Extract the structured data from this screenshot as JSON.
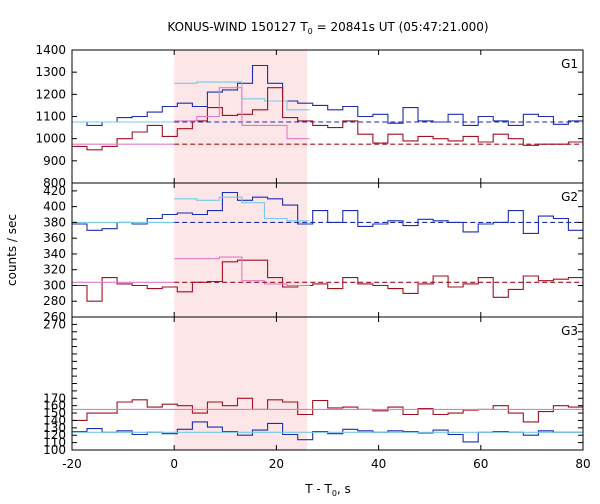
{
  "chart_data": {
    "type": "line",
    "title": "KONUS-WIND 150127 T",
    "title_sub": "0",
    "title_rest": " = 20841s UT (05:47:21.000)",
    "xlabel": "T - T",
    "xlabel_sub": "0",
    "xlabel_rest": ", s",
    "ylabel": "counts / sec",
    "xlim": [
      -20,
      80
    ],
    "xticks": [
      -20,
      0,
      20,
      40,
      60,
      80
    ],
    "shaded_interval": [
      0,
      26
    ],
    "colors": {
      "blue": "#1c2db0",
      "cyan": "#78c8e8",
      "darkred": "#a01020",
      "pink": "#e07ac8",
      "shade": "#fde6e8"
    },
    "bin_width": 2.944,
    "bin_start": -20,
    "panels": [
      {
        "label": "G1",
        "ylim": [
          800,
          1400
        ],
        "yticks": [
          800,
          900,
          1000,
          1100,
          1200,
          1300,
          1400
        ],
        "series": [
          {
            "color_key": "blue",
            "style": "step",
            "values": [
              1075,
              1060,
              1075,
              1095,
              1100,
              1120,
              1145,
              1160,
              1145,
              1210,
              1220,
              1250,
              1330,
              1250,
              1170,
              1160,
              1150,
              1130,
              1145,
              1100,
              1110,
              1070,
              1140,
              1080,
              1075,
              1110,
              1060,
              1100,
              1080,
              1060,
              1110,
              1100,
              1065,
              1080,
              1070,
              1080,
              1075
            ]
          },
          {
            "color_key": "cyan",
            "style": "step_window",
            "x_start": 0,
            "x_end": 26.5,
            "values": [
              1250,
              1255,
              1255,
              1180,
              1170,
              1130
            ]
          },
          {
            "color_key": "blue",
            "style": "hline_window",
            "x_start": 0,
            "x_end": 80,
            "value": 1075
          },
          {
            "color_key": "cyan",
            "style": "hline_window",
            "x_start": -20,
            "x_end": 0,
            "value": 1075
          },
          {
            "color_key": "darkred",
            "style": "step",
            "values": [
              965,
              950,
              965,
              1000,
              1030,
              1060,
              1010,
              1045,
              1080,
              1140,
              1105,
              1110,
              1130,
              1230,
              1095,
              1080,
              1060,
              1050,
              1080,
              1020,
              980,
              1020,
              990,
              1010,
              1000,
              990,
              1010,
              985,
              1020,
              1000,
              970,
              975,
              975,
              985,
              975,
              970,
              980
            ]
          },
          {
            "color_key": "pink",
            "style": "step_window",
            "x_start": 0,
            "x_end": 26.5,
            "values": [
              1080,
              1100,
              1230,
              1060,
              1060,
              1000
            ]
          },
          {
            "color_key": "darkred",
            "style": "hline_window",
            "x_start": 0,
            "x_end": 80,
            "value": 975
          },
          {
            "color_key": "pink",
            "style": "hline_window",
            "x_start": -20,
            "x_end": 0,
            "value": 975
          }
        ]
      },
      {
        "label": "G2",
        "ylim": [
          260,
          430
        ],
        "yticks": [
          260,
          280,
          300,
          320,
          340,
          360,
          380,
          400,
          420
        ],
        "series": [
          {
            "color_key": "blue",
            "style": "step",
            "values": [
              378,
              370,
              372,
              380,
              378,
              385,
              390,
              392,
              390,
              395,
              418,
              408,
              412,
              410,
              402,
              378,
              395,
              380,
              395,
              375,
              378,
              382,
              376,
              384,
              382,
              380,
              368,
              378,
              380,
              395,
              366,
              388,
              385,
              370,
              382,
              375,
              378
            ]
          },
          {
            "color_key": "cyan",
            "style": "step_window",
            "x_start": 0,
            "x_end": 26.5,
            "values": [
              410,
              408,
              412,
              405,
              385,
              382
            ]
          },
          {
            "color_key": "blue",
            "style": "hline_window",
            "x_start": 0,
            "x_end": 80,
            "value": 380
          },
          {
            "color_key": "cyan",
            "style": "hline_window",
            "x_start": -20,
            "x_end": 0,
            "value": 380
          },
          {
            "color_key": "darkred",
            "style": "step",
            "values": [
              300,
              280,
              310,
              302,
              300,
              296,
              298,
              292,
              304,
              305,
              330,
              332,
              332,
              310,
              298,
              300,
              302,
              296,
              310,
              302,
              300,
              296,
              290,
              302,
              312,
              298,
              302,
              310,
              285,
              295,
              312,
              306,
              308,
              310,
              300,
              295,
              312
            ]
          },
          {
            "color_key": "pink",
            "style": "step_window",
            "x_start": 0,
            "x_end": 26.5,
            "values": [
              334,
              334,
              336,
              306,
              302,
              300
            ]
          },
          {
            "color_key": "darkred",
            "style": "hline_window",
            "x_start": 0,
            "x_end": 80,
            "value": 304
          },
          {
            "color_key": "pink",
            "style": "hline_window",
            "x_start": -20,
            "x_end": 0,
            "value": 304
          }
        ]
      },
      {
        "label": "G3",
        "ylim": [
          100,
          280
        ],
        "yticks": [
          100,
          110,
          120,
          130,
          140,
          150,
          160,
          170,
          180,
          190,
          200,
          210,
          220,
          230,
          240,
          250,
          260,
          270
        ],
        "ytick_labels": [
          "100",
          "110",
          "120",
          "130",
          "140",
          "150",
          "160",
          "170",
          "",
          "",
          "",
          "",
          "",
          "",
          "",
          "",
          "",
          "270"
        ],
        "series": [
          {
            "color_key": "blue",
            "style": "step",
            "values": [
              125,
              129,
              124,
              126,
              121,
              124,
              122,
              128,
              138,
              131,
              125,
              120,
              127,
              136,
              121,
              114,
              125,
              122,
              128,
              126,
              124,
              126,
              125,
              123,
              127,
              121,
              111,
              124,
              125,
              124,
              120,
              126,
              124,
              124,
              126,
              125,
              126
            ]
          },
          {
            "color_key": "cyan",
            "style": "hline",
            "value": 124
          },
          {
            "color_key": "darkred",
            "style": "step",
            "values": [
              140,
              150,
              150,
              165,
              168,
              158,
              162,
              160,
              150,
              165,
              160,
              170,
              155,
              168,
              165,
              148,
              167,
              157,
              158,
              155,
              153,
              158,
              148,
              156,
              148,
              150,
              154,
              155,
              160,
              150,
              138,
              152,
              160,
              158,
              155,
              160,
              157
            ]
          },
          {
            "color_key": "pink",
            "style": "hline",
            "value": 155
          }
        ]
      }
    ]
  }
}
